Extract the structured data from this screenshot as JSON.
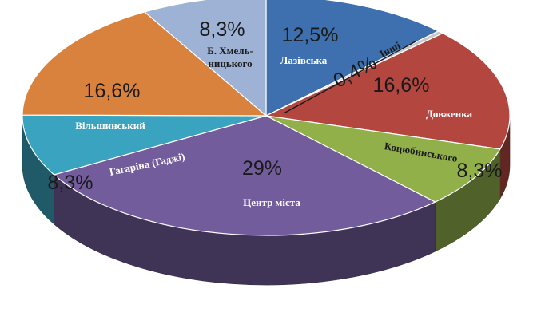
{
  "chart_data": {
    "type": "pie",
    "title": "",
    "slices": [
      {
        "label": "Лазівська",
        "value": 12.5,
        "display": "12,5%",
        "color": "#3e6fae"
      },
      {
        "label": "Інші",
        "value": 0.4,
        "display": "0,4%",
        "color": "#c8c8c8"
      },
      {
        "label": "Довженка",
        "value": 16.6,
        "display": "16,6%",
        "color": "#b44640"
      },
      {
        "label": "Коцюбинського",
        "value": 8.3,
        "display": "8,3%",
        "color": "#92b04a"
      },
      {
        "label": "Центр міста",
        "value": 29,
        "display": "29%",
        "color": "#735c9c"
      },
      {
        "label": "Гагаріна (Гаджі)",
        "value": 8.3,
        "display": "8,3%",
        "color": "#3aa3bf"
      },
      {
        "label": "Вільшинський",
        "value": 16.6,
        "display": "16,6%",
        "color": "#d9823d"
      },
      {
        "label": "Б. Хмель-ницького",
        "value": 8.3,
        "display": "8,3%",
        "color": "#9db2d4"
      }
    ]
  }
}
